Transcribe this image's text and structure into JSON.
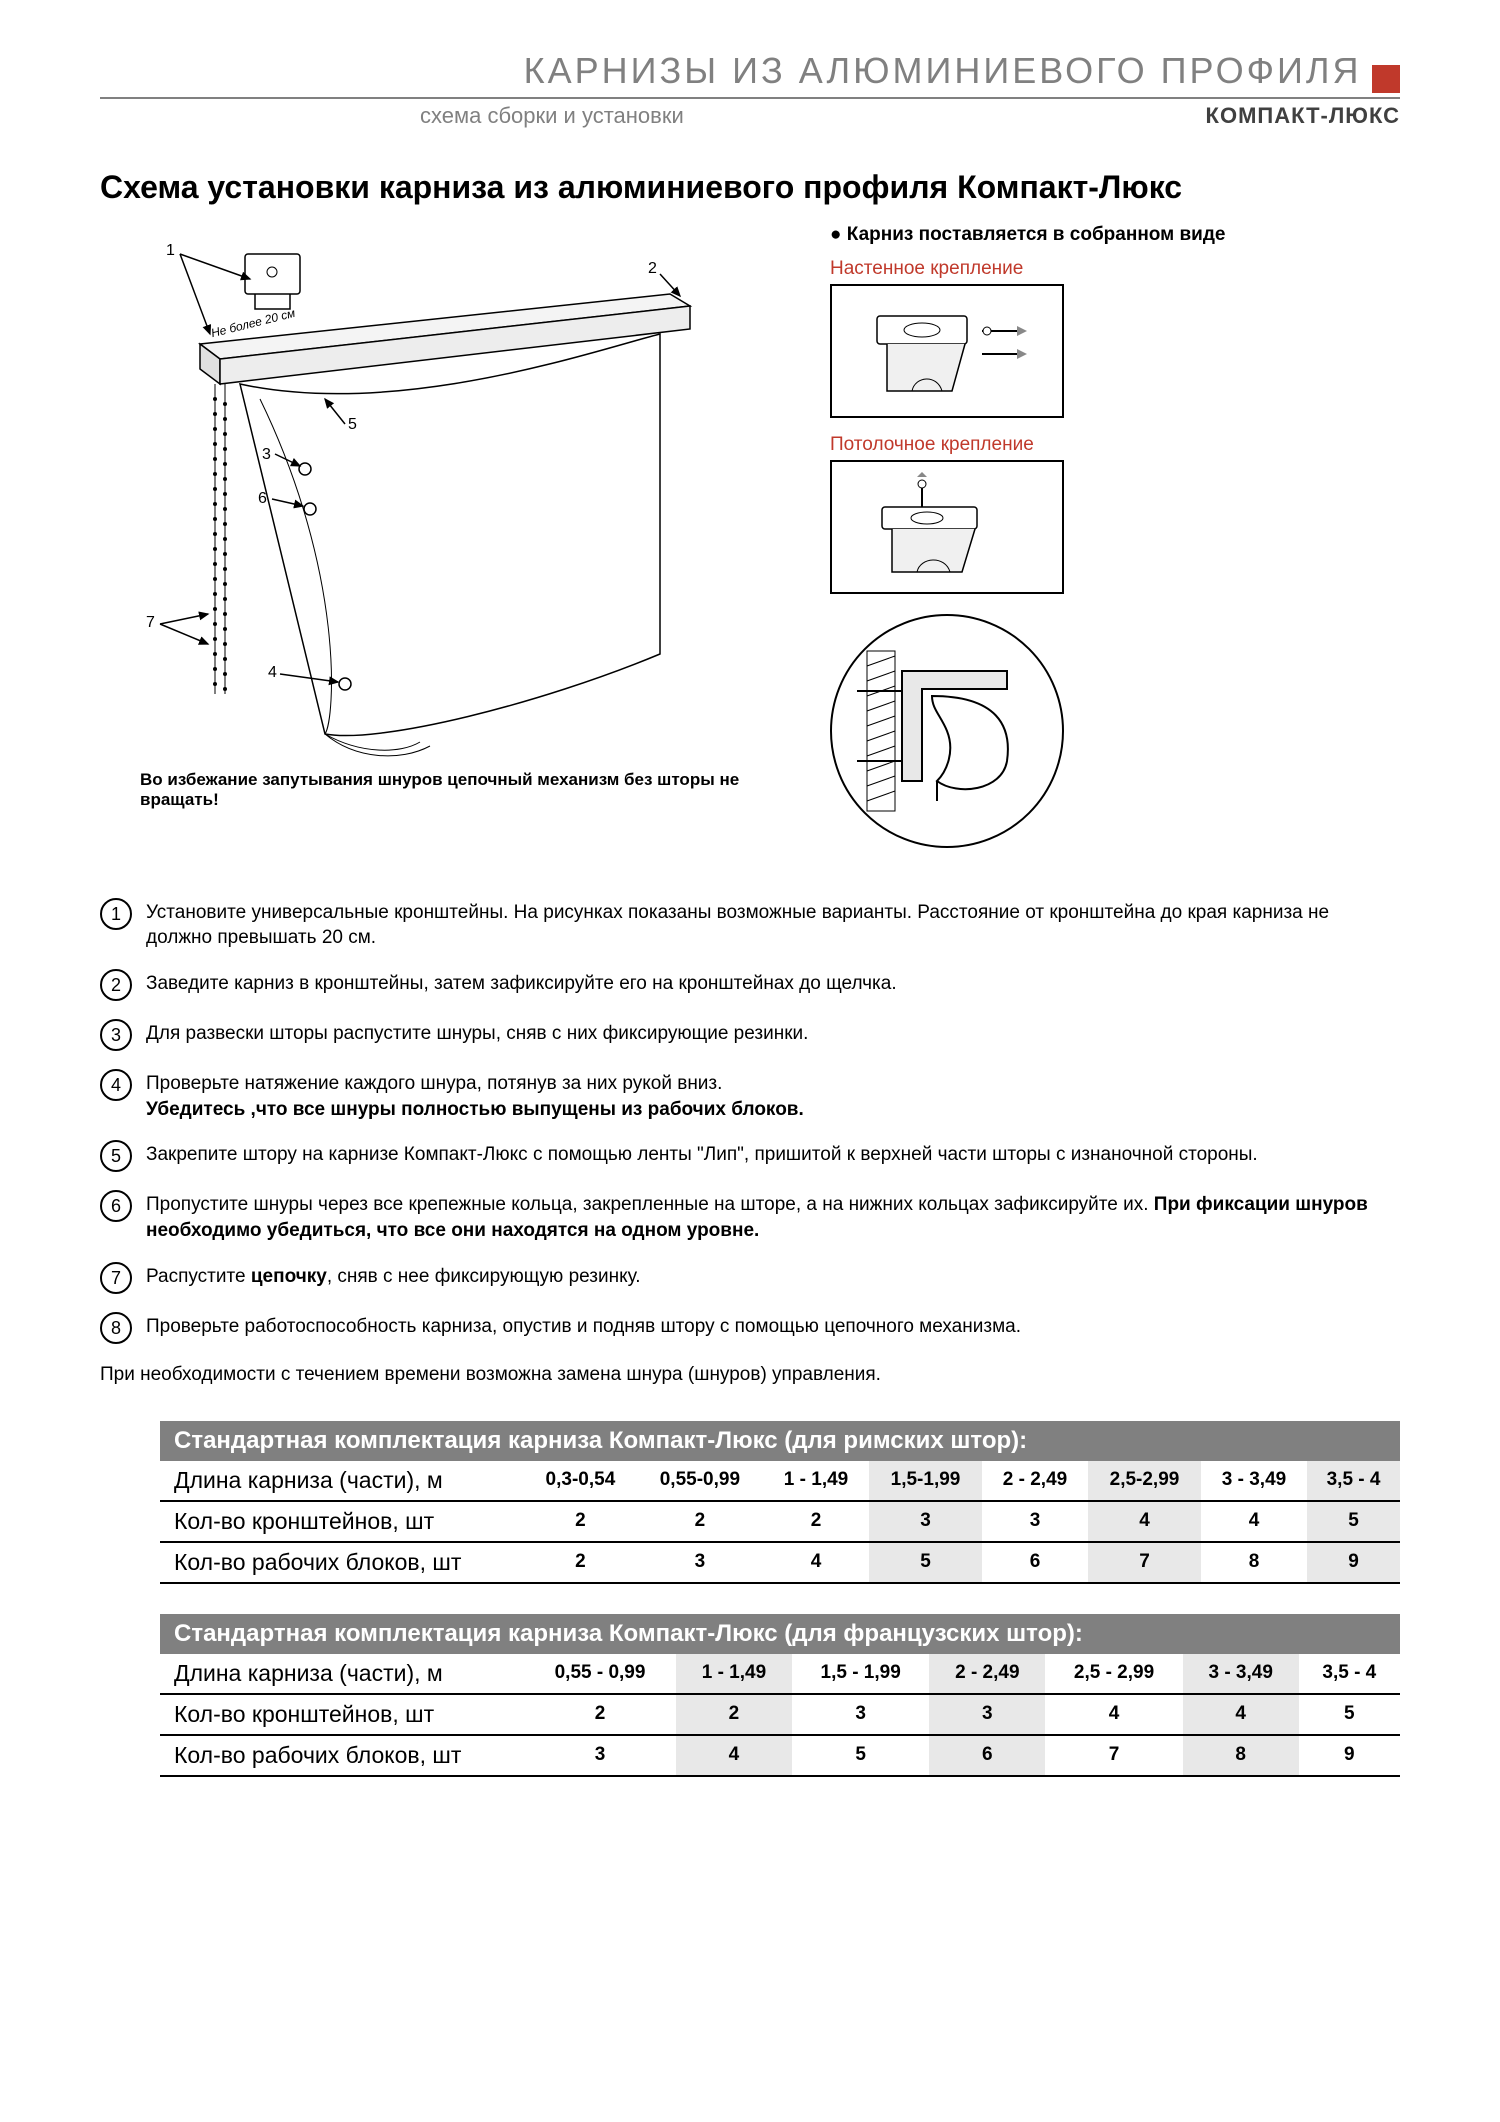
{
  "header": {
    "title": "КАРНИЗЫ  ИЗ  АЛЮМИНИЕВОГО  ПРОФИЛЯ",
    "subtitle_left": "схема сборки и установки",
    "subtitle_right": "КОМПАКТ-ЛЮКС",
    "accent_color": "#c0392b"
  },
  "main_title": "Схема  установки карниза из алюминиевого профиля Компакт-Люкс",
  "diagram": {
    "note_label": "Не более 20 см",
    "callouts": [
      "1",
      "2",
      "3",
      "4",
      "5",
      "6",
      "7"
    ],
    "warning": "Во избежание запутывания шнуров цепочный механизм без шторы не вращать!"
  },
  "right_panel": {
    "bullet": "Карниз поставляется в собранном виде",
    "wall_label": "Настенное крепление",
    "ceiling_label": "Потолочное крепление"
  },
  "steps": [
    {
      "n": "1",
      "text": "Установите универсальные кронштейны. На рисунках показаны возможные варианты. Расстояние от кронштейна до края карниза не должно превышать 20 см."
    },
    {
      "n": "2",
      "text": "Заведите карниз в кронштейны, затем зафиксируйте его на кронштейнах до щелчка."
    },
    {
      "n": "3",
      "text": "Для развески шторы распустите шнуры, сняв с них фиксирующие резинки."
    },
    {
      "n": "4",
      "text": "Проверьте натяжение каждого шнура, потянув за них рукой вниз.",
      "bold": "Убедитесь ,что все шнуры полностью выпущены из рабочих блоков."
    },
    {
      "n": "5",
      "text": "Закрепите штору на карнизе Компакт-Люкс с помощью ленты \"Лип\", пришитой к верхней части шторы с изнаночной стороны."
    },
    {
      "n": "6",
      "text": "Пропустите шнуры через все крепежные кольца, закрепленные на шторе, а на нижних кольцах зафиксируйте их.",
      "bold": "При фиксации шнуров необходимо убедиться, что все они находятся на одном уровне."
    },
    {
      "n": "7",
      "text_pre": "Распустите ",
      "bold_inline": "цепочку",
      "text_post": ", сняв с нее фиксирующую резинку."
    },
    {
      "n": "8",
      "text": "Проверьте работоспособность карниза, опустив и подняв штору с помощью цепочного механизма."
    }
  ],
  "footnote": "При необходимости с течением времени возможна замена шнура (шнуров) управления.",
  "table1": {
    "title": "Стандартная комплектация карниза Компакт-Люкс (для римских штор):",
    "row_labels": [
      "Длина карниза (части), м",
      "Кол-во кронштейнов, шт",
      "Кол-во рабочих блоков, шт"
    ],
    "cols": [
      "0,3-0,54",
      "0,55-0,99",
      "1 - 1,49",
      "1,5-1,99",
      "2 - 2,49",
      "2,5-2,99",
      "3 - 3,49",
      "3,5 - 4"
    ],
    "brackets": [
      "2",
      "2",
      "2",
      "3",
      "3",
      "4",
      "4",
      "5"
    ],
    "blocks": [
      "2",
      "3",
      "4",
      "5",
      "6",
      "7",
      "8",
      "9"
    ],
    "alt_cols": [
      3,
      5,
      7
    ]
  },
  "table2": {
    "title": "Стандартная комплектация карниза Компакт-Люкс (для французских штор):",
    "row_labels": [
      "Длина карниза (части), м",
      "Кол-во кронштейнов, шт",
      "Кол-во рабочих блоков, шт"
    ],
    "cols": [
      "0,55 - 0,99",
      "1 - 1,49",
      "1,5 - 1,99",
      "2 - 2,49",
      "2,5 - 2,99",
      "3 - 3,49",
      "3,5 - 4"
    ],
    "brackets": [
      "2",
      "2",
      "3",
      "3",
      "4",
      "4",
      "5"
    ],
    "blocks": [
      "3",
      "4",
      "5",
      "6",
      "7",
      "8",
      "9"
    ],
    "alt_cols": [
      1,
      3,
      5
    ]
  }
}
